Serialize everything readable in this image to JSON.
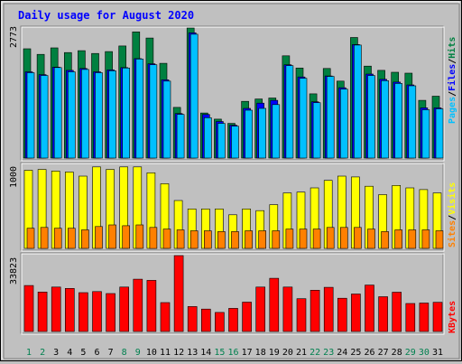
{
  "title": "Daily usage for August 2020",
  "colors": {
    "background": "#c0c0c0",
    "hits": "#008040",
    "files": "#0000ff",
    "pages": "#00c0ff",
    "visits": "#ffff00",
    "sites": "#ff8000",
    "kbytes": "#ff0000",
    "title": "#0000ff",
    "weekend": "#00804f"
  },
  "panels": {
    "top": {
      "max_label": "2773",
      "legend": [
        {
          "text": "Pages",
          "color": "#00c0ff"
        },
        {
          "text": "Files",
          "color": "#0000ff"
        },
        {
          "text": "Hits",
          "color": "#008040"
        }
      ]
    },
    "middle": {
      "max_label": "1000",
      "legend": [
        {
          "text": "Sites",
          "color": "#ff8000"
        },
        {
          "text": "Visits",
          "color": "#ffff00"
        }
      ]
    },
    "bottom": {
      "max_label": "33823",
      "legend": [
        {
          "text": "KBytes",
          "color": "#ff0000"
        }
      ]
    }
  },
  "separator": "/",
  "chart_data": {
    "type": "bar",
    "categories": [
      "1",
      "2",
      "3",
      "4",
      "5",
      "6",
      "7",
      "8",
      "9",
      "10",
      "11",
      "12",
      "13",
      "14",
      "15",
      "16",
      "17",
      "18",
      "19",
      "20",
      "21",
      "22",
      "23",
      "24",
      "25",
      "26",
      "27",
      "28",
      "29",
      "30",
      "31"
    ],
    "weekend_days": [
      "1",
      "2",
      "8",
      "9",
      "15",
      "16",
      "22",
      "23",
      "29",
      "30"
    ],
    "series": [
      {
        "name": "Hits",
        "panel": "top",
        "values": [
          2330,
          2210,
          2350,
          2250,
          2290,
          2230,
          2270,
          2390,
          2690,
          2560,
          2020,
          1080,
          2773,
          960,
          830,
          740,
          1210,
          1260,
          1280,
          2180,
          1920,
          1370,
          1910,
          1640,
          2570,
          1960,
          1870,
          1830,
          1810,
          1230,
          1320
        ]
      },
      {
        "name": "Files",
        "panel": "top",
        "values": [
          1840,
          1780,
          1940,
          1870,
          1910,
          1840,
          1880,
          1930,
          2120,
          2010,
          1670,
          950,
          2670,
          930,
          780,
          700,
          1060,
          1170,
          1230,
          1990,
          1730,
          1200,
          1750,
          1500,
          2420,
          1790,
          1680,
          1620,
          1560,
          1070,
          1070
        ]
      },
      {
        "name": "Pages",
        "panel": "top",
        "values": [
          1820,
          1760,
          1930,
          1840,
          1890,
          1820,
          1860,
          1920,
          2110,
          1990,
          1640,
          930,
          2640,
          860,
          740,
          680,
          1020,
          1060,
          1140,
          1970,
          1700,
          1180,
          1740,
          1470,
          2410,
          1760,
          1650,
          1590,
          1540,
          1030,
          1050
        ]
      },
      {
        "name": "Visits",
        "panel": "middle",
        "values": [
          930,
          940,
          920,
          910,
          860,
          970,
          940,
          970,
          970,
          900,
          770,
          570,
          470,
          470,
          470,
          400,
          470,
          450,
          520,
          660,
          670,
          720,
          810,
          860,
          850,
          740,
          640,
          750,
          720,
          700,
          660
        ]
      },
      {
        "name": "Sites",
        "panel": "middle",
        "values": [
          240,
          250,
          240,
          240,
          220,
          260,
          280,
          270,
          280,
          250,
          230,
          220,
          210,
          210,
          200,
          200,
          210,
          210,
          210,
          230,
          230,
          230,
          250,
          250,
          250,
          230,
          200,
          220,
          220,
          220,
          210
        ]
      },
      {
        "name": "KBytes",
        "panel": "bottom",
        "values": [
          20500,
          17600,
          19800,
          19200,
          17300,
          17800,
          16900,
          19800,
          23300,
          22800,
          12900,
          33823,
          11100,
          10000,
          8500,
          10300,
          13100,
          19800,
          23700,
          19800,
          14600,
          18400,
          19700,
          14800,
          16700,
          20700,
          15500,
          17500,
          12500,
          12700,
          13000
        ]
      }
    ],
    "ylim": {
      "top": [
        0,
        2773
      ],
      "middle": [
        0,
        1000
      ],
      "bottom": [
        0,
        33823
      ]
    }
  }
}
